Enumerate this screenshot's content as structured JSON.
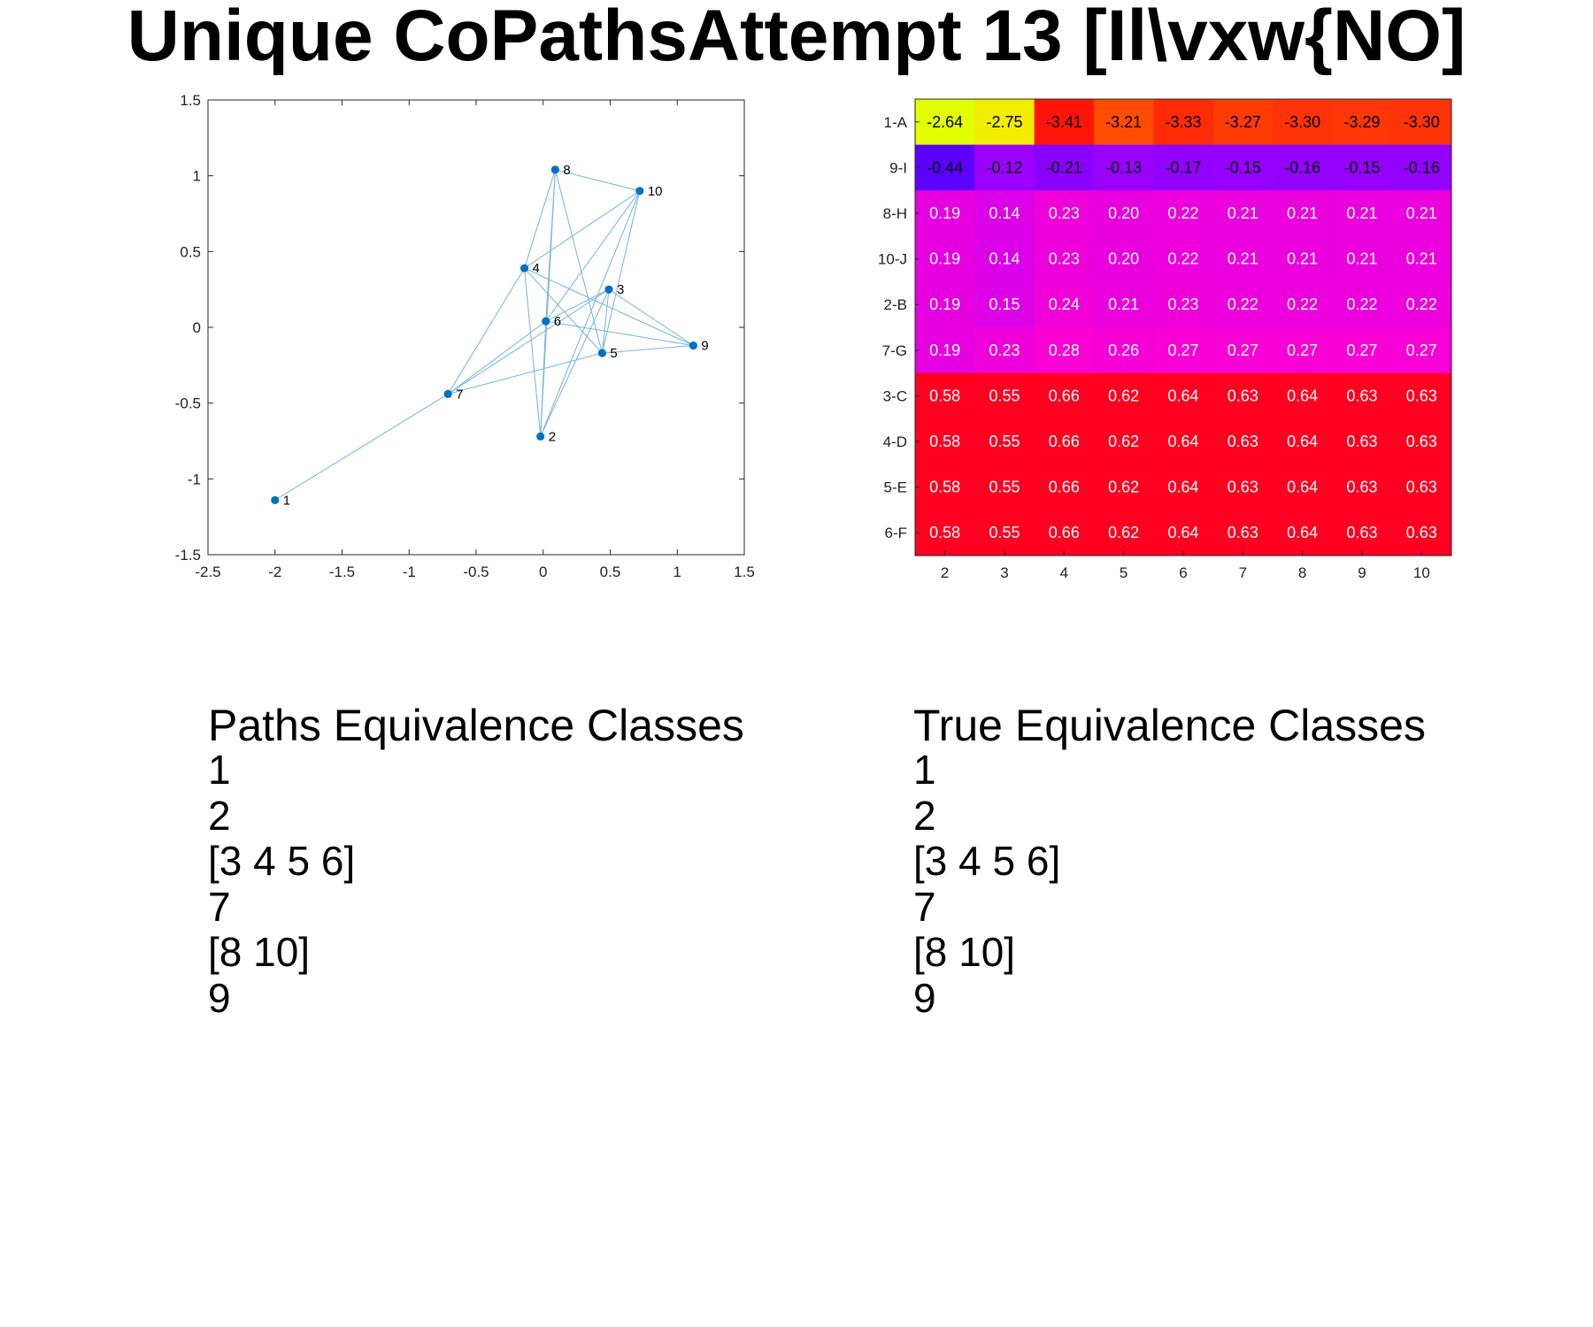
{
  "title": "Unique CoPathsAttempt 13 [Il\\vxw{NO]",
  "chart_data": [
    {
      "type": "scatter",
      "subtype": "network-graph",
      "xlim": [
        -2.5,
        1.5
      ],
      "ylim": [
        -1.5,
        1.5
      ],
      "xticks": [
        "-2.5",
        "-2",
        "-1.5",
        "-1",
        "-0.5",
        "0",
        "0.5",
        "1",
        "1.5"
      ],
      "yticks": [
        "1.5",
        "1",
        "0.5",
        "0",
        "-0.5",
        "-1",
        "-1.5"
      ],
      "grid": false,
      "node_color": "#0072BD",
      "edge_color": "#7FB8DE",
      "nodes": [
        {
          "id": "1",
          "x": -2.0,
          "y": -1.14
        },
        {
          "id": "2",
          "x": -0.02,
          "y": -0.72
        },
        {
          "id": "3",
          "x": 0.49,
          "y": 0.25
        },
        {
          "id": "4",
          "x": -0.14,
          "y": 0.39
        },
        {
          "id": "5",
          "x": 0.44,
          "y": -0.17
        },
        {
          "id": "6",
          "x": 0.02,
          "y": 0.04
        },
        {
          "id": "7",
          "x": -0.71,
          "y": -0.44
        },
        {
          "id": "8",
          "x": 0.09,
          "y": 1.04
        },
        {
          "id": "9",
          "x": 1.12,
          "y": -0.12
        },
        {
          "id": "10",
          "x": 0.72,
          "y": 0.9
        }
      ],
      "edges": [
        [
          "1",
          "7"
        ],
        [
          "7",
          "4"
        ],
        [
          "7",
          "3"
        ],
        [
          "7",
          "6"
        ],
        [
          "7",
          "5"
        ],
        [
          "2",
          "4"
        ],
        [
          "2",
          "8"
        ],
        [
          "2",
          "3"
        ],
        [
          "2",
          "10"
        ],
        [
          "4",
          "8"
        ],
        [
          "4",
          "10"
        ],
        [
          "4",
          "5"
        ],
        [
          "4",
          "9"
        ],
        [
          "8",
          "10"
        ],
        [
          "8",
          "5"
        ],
        [
          "8",
          "6"
        ],
        [
          "10",
          "6"
        ],
        [
          "10",
          "5"
        ],
        [
          "3",
          "9"
        ],
        [
          "3",
          "5"
        ],
        [
          "3",
          "6"
        ],
        [
          "6",
          "9"
        ],
        [
          "5",
          "9"
        ],
        [
          "6",
          "2"
        ]
      ]
    },
    {
      "type": "heatmap",
      "columns": [
        "2",
        "3",
        "4",
        "5",
        "6",
        "7",
        "8",
        "9",
        "10"
      ],
      "rows": [
        "1-A",
        "9-I",
        "8-H",
        "10-J",
        "2-B",
        "7-G",
        "3-C",
        "4-D",
        "5-E",
        "6-F"
      ],
      "values": [
        [
          -2.64,
          -2.75,
          -3.41,
          -3.21,
          -3.33,
          -3.27,
          -3.3,
          -3.29,
          -3.3
        ],
        [
          -0.44,
          -0.12,
          -0.21,
          -0.13,
          -0.17,
          -0.15,
          -0.16,
          -0.15,
          -0.16
        ],
        [
          0.19,
          0.14,
          0.23,
          0.2,
          0.22,
          0.21,
          0.21,
          0.21,
          0.21
        ],
        [
          0.19,
          0.14,
          0.23,
          0.2,
          0.22,
          0.21,
          0.21,
          0.21,
          0.21
        ],
        [
          0.19,
          0.15,
          0.24,
          0.21,
          0.23,
          0.22,
          0.22,
          0.22,
          0.22
        ],
        [
          0.19,
          0.23,
          0.28,
          0.26,
          0.27,
          0.27,
          0.27,
          0.27,
          0.27
        ],
        [
          0.58,
          0.55,
          0.66,
          0.62,
          0.64,
          0.63,
          0.64,
          0.63,
          0.63
        ],
        [
          0.58,
          0.55,
          0.66,
          0.62,
          0.64,
          0.63,
          0.64,
          0.63,
          0.63
        ],
        [
          0.58,
          0.55,
          0.66,
          0.62,
          0.64,
          0.63,
          0.64,
          0.63,
          0.63
        ],
        [
          0.58,
          0.55,
          0.66,
          0.62,
          0.64,
          0.63,
          0.64,
          0.63,
          0.63
        ]
      ],
      "colormap": "hsv-like (blue to magenta to red to yellow)"
    }
  ],
  "paths_classes": {
    "heading": "Paths Equivalence Classes",
    "items": [
      "1",
      "2",
      "[3 4 5 6]",
      "7",
      "[8 10]",
      "9"
    ]
  },
  "true_classes": {
    "heading": "True Equivalence Classes",
    "items": [
      "1",
      "2",
      "[3 4 5 6]",
      "7",
      "[8 10]",
      "9"
    ]
  }
}
